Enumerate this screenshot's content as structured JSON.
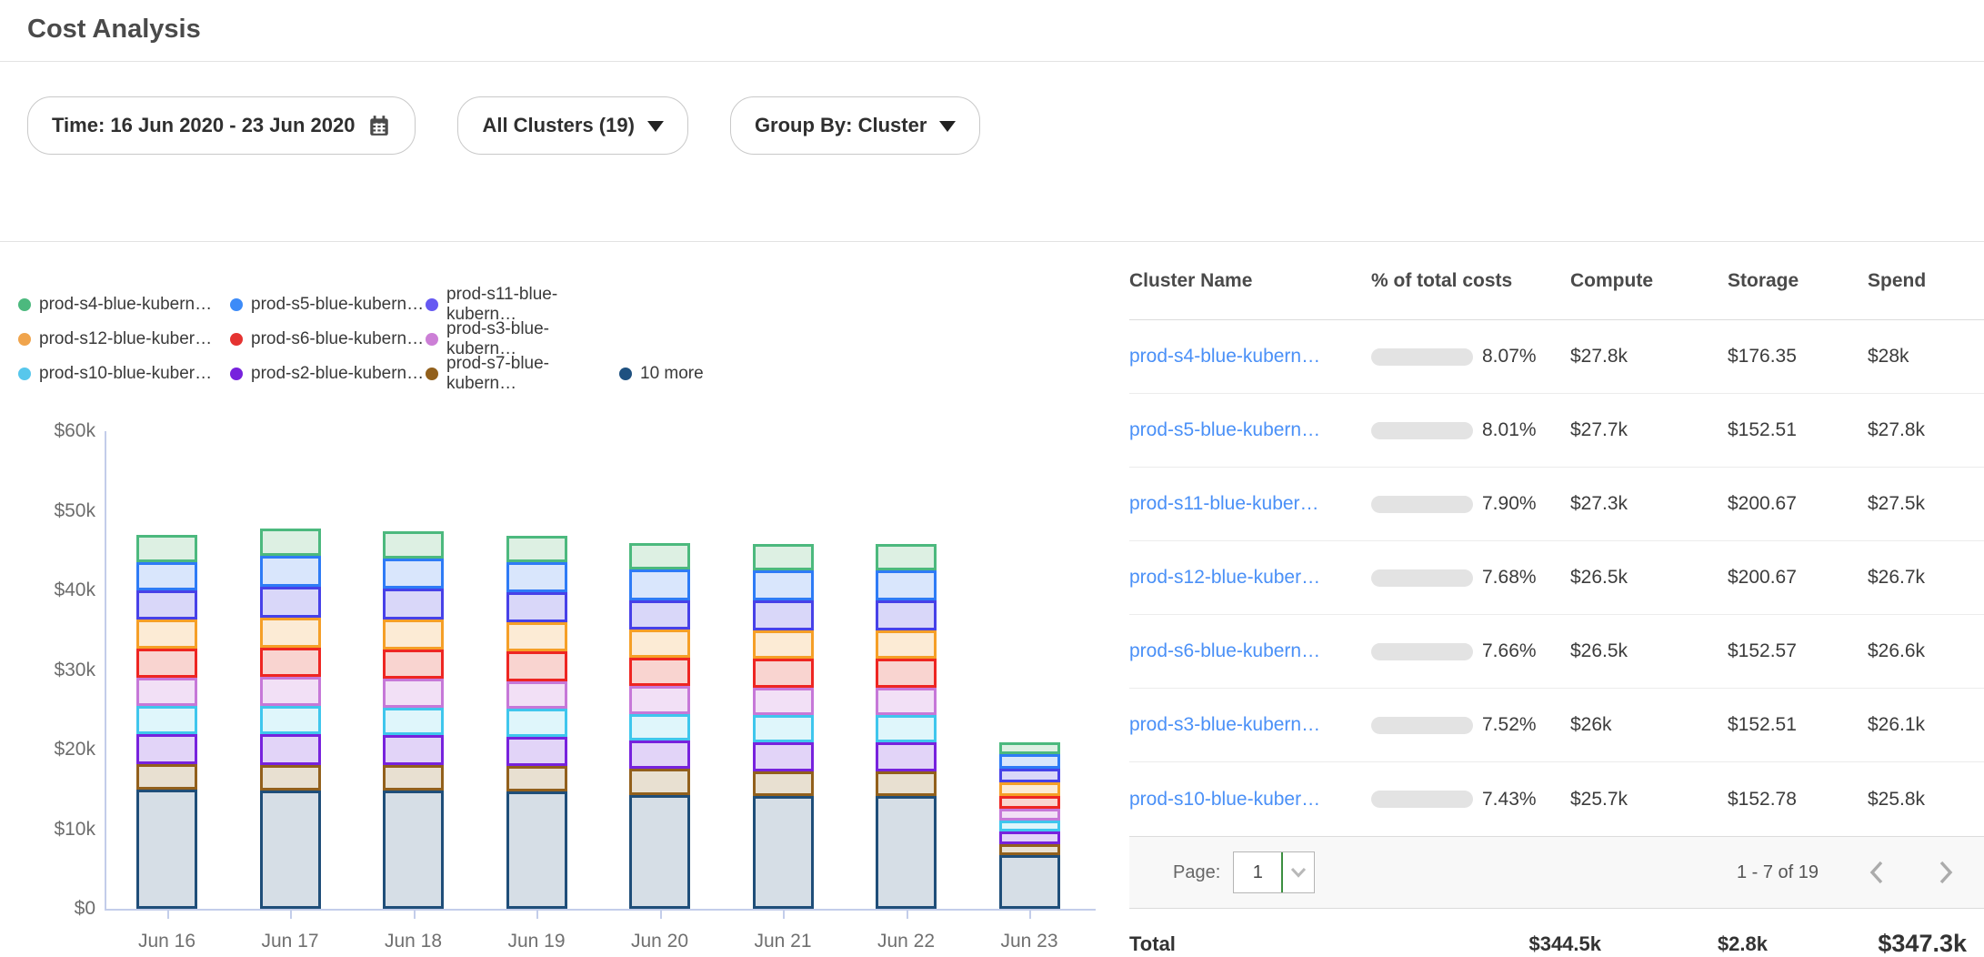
{
  "header": {
    "title": "Cost Analysis"
  },
  "filters": {
    "time_label": "Time: 16 Jun 2020 - 23 Jun 2020",
    "clusters_label": "All Clusters (19)",
    "group_by_label": "Group By: Cluster"
  },
  "legend": [
    {
      "label": "prod-s4-blue-kubern…",
      "color": "#4CB97E"
    },
    {
      "label": "prod-s5-blue-kubern…",
      "color": "#3D8BF8"
    },
    {
      "label": "prod-s11-blue-kubern…",
      "color": "#6659F2"
    },
    {
      "label": "prod-s12-blue-kuber…",
      "color": "#F0A44C"
    },
    {
      "label": "prod-s6-blue-kubern…",
      "color": "#E53331"
    },
    {
      "label": "prod-s3-blue-kubern…",
      "color": "#CC7FD6"
    },
    {
      "label": "prod-s10-blue-kuber…",
      "color": "#57C7EC"
    },
    {
      "label": "prod-s2-blue-kubern…",
      "color": "#7722DD"
    },
    {
      "label": "prod-s7-blue-kubern…",
      "color": "#92601C"
    },
    {
      "label": "10 more",
      "color": "#1F5180"
    }
  ],
  "chart_data": {
    "type": "bar",
    "stacked": true,
    "categories": [
      "Jun 16",
      "Jun 17",
      "Jun 18",
      "Jun 19",
      "Jun 20",
      "Jun 21",
      "Jun 22",
      "Jun 23"
    ],
    "y_ticks": [
      "$0",
      "$10k",
      "$20k",
      "$30k",
      "$40k",
      "$50k",
      "$60k"
    ],
    "ylim_k": [
      0,
      60
    ],
    "unit": "USD thousands per day",
    "series": [
      {
        "name": "10 more",
        "stroke": "#1F4E79",
        "fill": "#D6DEE6",
        "values": [
          15.0,
          14.9,
          14.9,
          14.8,
          14.3,
          14.2,
          14.2,
          6.8
        ]
      },
      {
        "name": "prod-s7-blue-kubern…",
        "stroke": "#92601C",
        "fill": "#E8E0D1",
        "values": [
          3.2,
          3.2,
          3.2,
          3.1,
          3.3,
          3.1,
          3.1,
          1.3
        ]
      },
      {
        "name": "prod-s2-blue-kubern…",
        "stroke": "#7722DD",
        "fill": "#E2D4F8",
        "values": [
          3.8,
          3.8,
          3.7,
          3.7,
          3.5,
          3.6,
          3.6,
          1.6
        ]
      },
      {
        "name": "prod-s10-blue-kuber…",
        "stroke": "#3FC6ED",
        "fill": "#DFF6FB",
        "values": [
          3.5,
          3.6,
          3.5,
          3.5,
          3.4,
          3.4,
          3.4,
          1.4
        ]
      },
      {
        "name": "prod-s3-blue-kubern…",
        "stroke": "#C678D8",
        "fill": "#F2E0F6",
        "values": [
          3.5,
          3.6,
          3.6,
          3.5,
          3.5,
          3.5,
          3.5,
          1.5
        ]
      },
      {
        "name": "prod-s6-blue-kubern…",
        "stroke": "#EE2622",
        "fill": "#F9D4D0",
        "values": [
          3.7,
          3.7,
          3.7,
          3.7,
          3.5,
          3.6,
          3.6,
          1.6
        ]
      },
      {
        "name": "prod-s12-blue-kuber…",
        "stroke": "#F59F27",
        "fill": "#FCEBD5",
        "values": [
          3.7,
          3.8,
          3.7,
          3.7,
          3.6,
          3.6,
          3.6,
          1.7
        ]
      },
      {
        "name": "prod-s11-blue-kubern…",
        "stroke": "#4741E8",
        "fill": "#D9D7F9",
        "values": [
          3.6,
          3.9,
          3.9,
          3.8,
          3.7,
          3.8,
          3.8,
          1.7
        ]
      },
      {
        "name": "prod-s5-blue-kubern…",
        "stroke": "#2E7BF6",
        "fill": "#D9E6FC",
        "values": [
          3.6,
          3.8,
          3.8,
          3.7,
          3.8,
          3.7,
          3.7,
          1.8
        ]
      },
      {
        "name": "prod-s4-blue-kubern…",
        "stroke": "#4CB97E",
        "fill": "#DDF0E3",
        "values": [
          3.4,
          3.5,
          3.4,
          3.4,
          3.4,
          3.3,
          3.3,
          1.5
        ]
      }
    ]
  },
  "table": {
    "columns": [
      "Cluster Name",
      "% of total costs",
      "Compute",
      "Storage",
      "Spend"
    ],
    "progress_fill_color": "#4285F4",
    "rows": [
      {
        "name": "prod-s4-blue-kubern…",
        "pct": "8.07%",
        "pct_value": 8.07,
        "compute": "$27.8k",
        "storage": "$176.35",
        "spend": "$28k"
      },
      {
        "name": "prod-s5-blue-kubern…",
        "pct": "8.01%",
        "pct_value": 8.01,
        "compute": "$27.7k",
        "storage": "$152.51",
        "spend": "$27.8k"
      },
      {
        "name": "prod-s11-blue-kuber…",
        "pct": "7.90%",
        "pct_value": 7.9,
        "compute": "$27.3k",
        "storage": "$200.67",
        "spend": "$27.5k"
      },
      {
        "name": "prod-s12-blue-kuber…",
        "pct": "7.68%",
        "pct_value": 7.68,
        "compute": "$26.5k",
        "storage": "$200.67",
        "spend": "$26.7k"
      },
      {
        "name": "prod-s6-blue-kubern…",
        "pct": "7.66%",
        "pct_value": 7.66,
        "compute": "$26.5k",
        "storage": "$152.57",
        "spend": "$26.6k"
      },
      {
        "name": "prod-s3-blue-kubern…",
        "pct": "7.52%",
        "pct_value": 7.52,
        "compute": "$26k",
        "storage": "$152.51",
        "spend": "$26.1k"
      },
      {
        "name": "prod-s10-blue-kuber…",
        "pct": "7.43%",
        "pct_value": 7.43,
        "compute": "$25.7k",
        "storage": "$152.78",
        "spend": "$25.8k"
      }
    ],
    "pagination": {
      "page_label": "Page:",
      "page_value": "1",
      "range": "1 - 7 of 19"
    },
    "total": {
      "label": "Total",
      "compute": "$344.5k",
      "storage": "$2.8k",
      "spend": "$347.3k"
    }
  }
}
